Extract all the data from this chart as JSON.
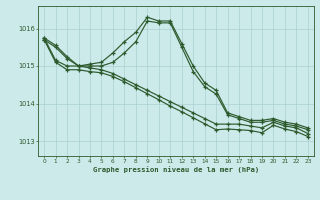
{
  "title": "Graphe pression niveau de la mer (hPa)",
  "bg_color": "#cceaea",
  "grid_color": "#aacfcf",
  "line_color": "#2d5a2d",
  "x_ticks": [
    0,
    1,
    2,
    3,
    4,
    5,
    6,
    7,
    8,
    9,
    10,
    11,
    12,
    13,
    14,
    15,
    16,
    17,
    18,
    19,
    20,
    21,
    22,
    23
  ],
  "y_ticks": [
    1013,
    1014,
    1015,
    1016
  ],
  "ylim": [
    1012.6,
    1016.6
  ],
  "xlim": [
    -0.5,
    23.5
  ],
  "line1": [
    1015.75,
    1015.55,
    1015.25,
    1015.0,
    1015.05,
    1015.1,
    1015.35,
    1015.65,
    1015.9,
    1016.3,
    1016.2,
    1016.2,
    1015.6,
    1015.0,
    1014.55,
    1014.35,
    1013.75,
    1013.65,
    1013.55,
    1013.55,
    1013.6,
    1013.5,
    1013.45,
    1013.35
  ],
  "line2": [
    1015.7,
    1015.5,
    1015.2,
    1015.0,
    1015.0,
    1015.0,
    1015.1,
    1015.35,
    1015.65,
    1016.2,
    1016.15,
    1016.15,
    1015.5,
    1014.85,
    1014.45,
    1014.25,
    1013.7,
    1013.6,
    1013.5,
    1013.5,
    1013.55,
    1013.45,
    1013.4,
    1013.3
  ],
  "line3": [
    1015.75,
    1015.15,
    1015.0,
    1015.0,
    1014.95,
    1014.9,
    1014.8,
    1014.65,
    1014.5,
    1014.35,
    1014.2,
    1014.05,
    1013.9,
    1013.75,
    1013.6,
    1013.45,
    1013.45,
    1013.45,
    1013.4,
    1013.35,
    1013.5,
    1013.4,
    1013.35,
    1013.2
  ],
  "line4": [
    1015.7,
    1015.1,
    1014.9,
    1014.9,
    1014.85,
    1014.82,
    1014.72,
    1014.58,
    1014.42,
    1014.26,
    1014.1,
    1013.93,
    1013.78,
    1013.62,
    1013.46,
    1013.3,
    1013.32,
    1013.3,
    1013.28,
    1013.22,
    1013.42,
    1013.32,
    1013.25,
    1013.12
  ]
}
